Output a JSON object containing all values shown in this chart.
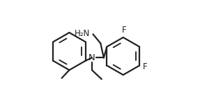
{
  "bg_color": "#ffffff",
  "line_color": "#222222",
  "text_color": "#222222",
  "line_width": 1.6,
  "font_size": 8.5,
  "lcx": 0.38,
  "lcy": 0.52,
  "lr": 0.18,
  "rcx": 0.72,
  "rcy": 0.5,
  "rr": 0.18,
  "nx": 0.5,
  "ny": 0.585,
  "ccx": 0.575,
  "ccy": 0.515,
  "nh2_label": "H₂N",
  "n_label": "N",
  "f1_label": "F",
  "f2_label": "F"
}
